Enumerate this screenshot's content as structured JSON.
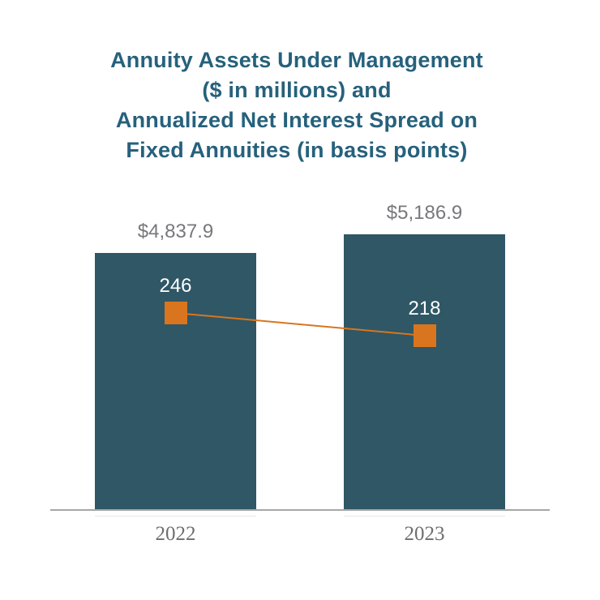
{
  "title": {
    "lines": [
      "Annuity Assets Under Management",
      "($ in millions) and",
      "Annualized Net Interest Spread on",
      "Fixed Annuities (in basis points)"
    ],
    "color": "#26617c"
  },
  "chart_data": {
    "type": "bar",
    "subtype": "combo bar + line with square markers",
    "title": "Annuity Assets Under Management ($ in millions) and Annualized Net Interest Spread on Fixed Annuities (in basis points)",
    "categories": [
      "2022",
      "2023"
    ],
    "series": [
      {
        "name": "Annuity Assets Under Management ($ in millions)",
        "type": "bar",
        "values": [
          4837.9,
          5186.9
        ],
        "data_labels": [
          "$4,837.9",
          "$5,186.9"
        ],
        "color": "#2f5765",
        "label_color": "#77787b"
      },
      {
        "name": "Annualized Net Interest Spread on Fixed Annuities (in basis points)",
        "type": "line",
        "marker": "square",
        "values": [
          246,
          218
        ],
        "data_labels": [
          "246",
          "218"
        ],
        "color": "#d9751e",
        "label_color": "#ffffff"
      }
    ],
    "xlabel": "",
    "ylabel": "",
    "legend": "none",
    "grid": false,
    "axis_line_color": "#a7a7a7",
    "x_tick_label_color": "#6e6e70",
    "background": "#ffffff"
  }
}
